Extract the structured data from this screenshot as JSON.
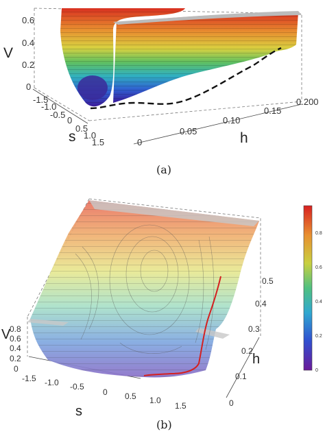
{
  "panel_a": {
    "caption": "(a)",
    "axis_v": "V",
    "axis_s": "s",
    "axis_h": "h",
    "v_ticks": [
      "0",
      "0.2",
      "0.4",
      "0.6"
    ],
    "s_ticks": [
      "-1.5",
      "-1.0",
      "-0.5",
      "0",
      "0.5",
      "1.0",
      "1.5"
    ],
    "h_ticks": [
      "0",
      "0.05",
      "0.10",
      "0.15",
      "0.200"
    ]
  },
  "panel_b": {
    "caption": "(b)",
    "axis_v": "V",
    "axis_s": "s",
    "axis_h": "h",
    "v_ticks": [
      "0",
      "0.2",
      "0.4",
      "0.6",
      "0.8"
    ],
    "s_ticks": [
      "-1.5",
      "-1.0",
      "-0.5",
      "0",
      "0.5",
      "1.0",
      "1.5"
    ],
    "h_ticks": [
      "0",
      "0.1",
      "0.2",
      "0.3",
      "0.4",
      "0.5"
    ],
    "colorbar_ticks": [
      "0",
      "0.2",
      "0.4",
      "0.6",
      "0.8"
    ]
  },
  "colors": {
    "red_path": "#d42020",
    "dashed_curve": "#111111"
  }
}
